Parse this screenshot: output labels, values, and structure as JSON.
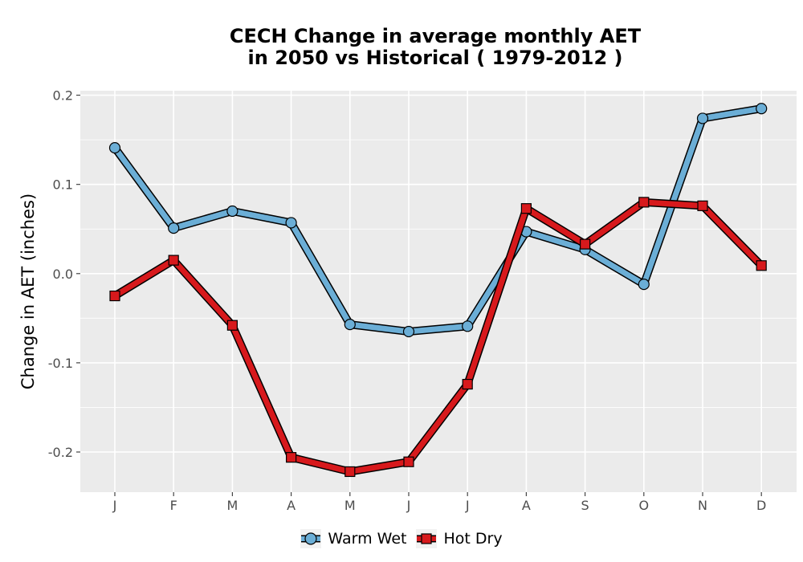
{
  "chart_data": {
    "type": "line",
    "title_line1": "CECH  Change in average monthly AET",
    "title_line2": "in 2050 vs Historical ( 1979-2012 )",
    "xlabel": "",
    "ylabel": "Change in AET (inches)",
    "categories": [
      "J",
      "F",
      "M",
      "A",
      "M",
      "J",
      "J",
      "A",
      "S",
      "O",
      "N",
      "D"
    ],
    "ylim": [
      -0.245,
      0.205
    ],
    "yticks": [
      -0.2,
      -0.1,
      0.0,
      0.1,
      0.2
    ],
    "ytick_labels": [
      "-0.2",
      "-0.1",
      "0.0",
      "0.1",
      "0.2"
    ],
    "grid": true,
    "legend_position": "bottom",
    "series": [
      {
        "name": "Warm Wet",
        "color": "#6baed6",
        "marker": "circle",
        "values": [
          0.141,
          0.051,
          0.07,
          0.057,
          -0.057,
          -0.065,
          -0.059,
          0.047,
          0.027,
          -0.012,
          0.174,
          0.185
        ]
      },
      {
        "name": "Hot Dry",
        "color": "#d7191c",
        "marker": "square",
        "values": [
          -0.025,
          0.015,
          -0.058,
          -0.206,
          -0.222,
          -0.211,
          -0.124,
          0.073,
          0.033,
          0.08,
          0.076,
          0.009
        ]
      }
    ]
  }
}
